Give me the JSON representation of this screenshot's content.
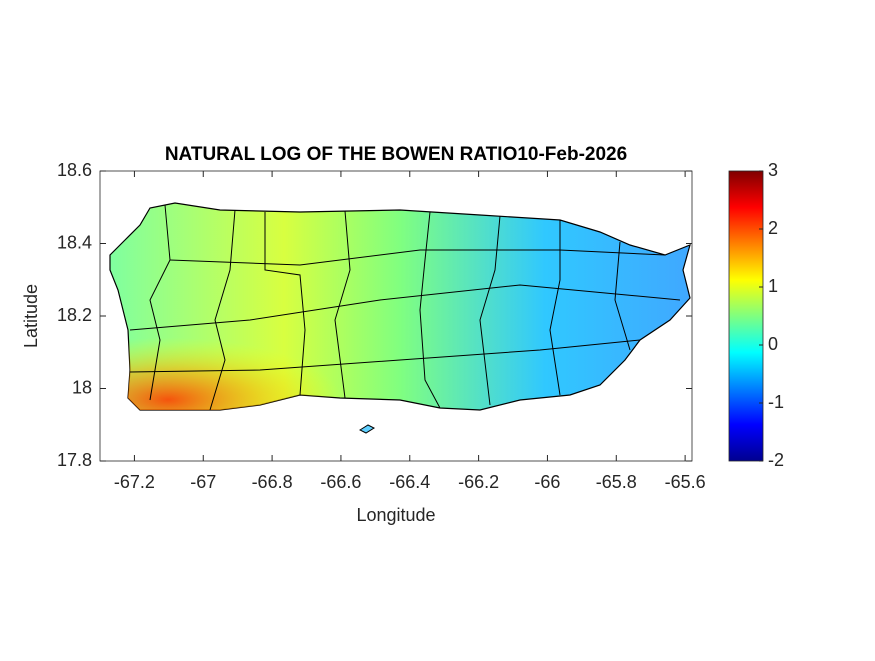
{
  "chart_data": {
    "type": "map",
    "title": "NATURAL LOG OF THE BOWEN RATIO10-Feb-2026",
    "x_label": "Longitude",
    "y_label": "Latitude",
    "xlim": [
      -67.3,
      -65.58
    ],
    "xticks": [
      -67.2,
      -67,
      -66.8,
      -66.6,
      -66.4,
      -66.2,
      -66,
      -65.8,
      -65.6
    ],
    "ylim": [
      17.8,
      18.6
    ],
    "yticks": [
      17.8,
      18,
      18.2,
      18.4,
      18.6
    ],
    "colormap": "jet",
    "clim": [
      -2,
      3
    ],
    "cticks": [
      -2,
      -1,
      0,
      1,
      2,
      3
    ]
  }
}
